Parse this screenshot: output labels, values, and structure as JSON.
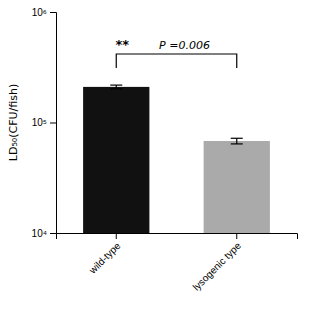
{
  "chart_data": {
    "type": "bar",
    "categories": [
      "wild-type",
      "lysogenic type"
    ],
    "values": [
      210000,
      68000
    ],
    "errors_upper": [
      8000,
      4000
    ],
    "errors_lower": [
      8000,
      4000
    ],
    "colors": [
      "#111111",
      "#aaaaaa"
    ],
    "y_label": "LD₅₀(CFU/fish)",
    "log": "y",
    "ylim": [
      10000,
      1000000
    ],
    "yticks": [
      {
        "value": 10000,
        "label": "10⁴"
      },
      {
        "value": 100000,
        "label": "10⁵"
      },
      {
        "value": 1000000,
        "label": "10⁶"
      }
    ],
    "grid": false,
    "annotations": [
      {
        "text": "**"
      },
      {
        "text": "P =0.006"
      }
    ]
  }
}
